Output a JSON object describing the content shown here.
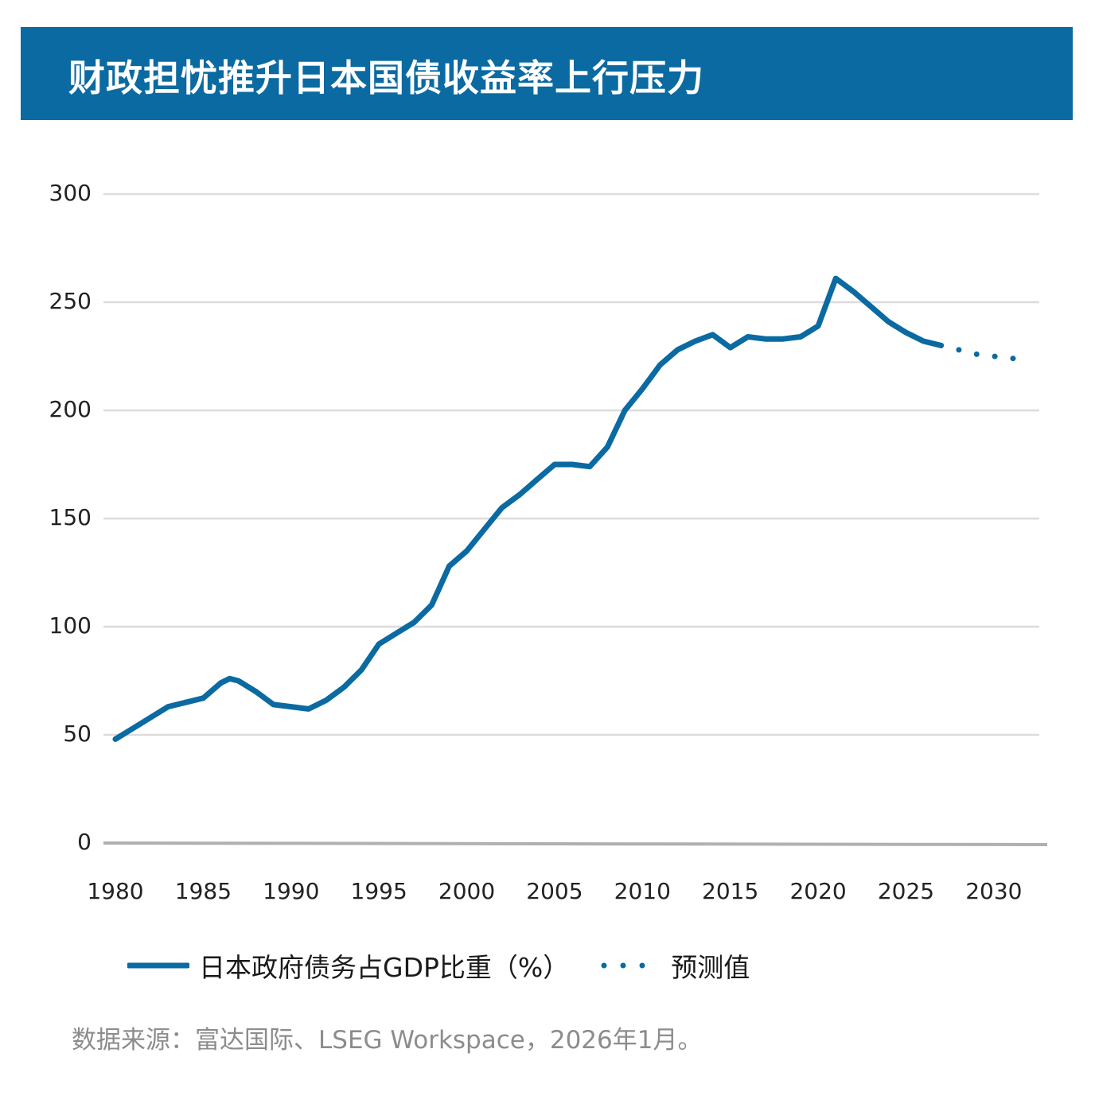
{
  "header": {
    "title": "财政担忧推升日本国债收益率上行压力"
  },
  "colors": {
    "accent": "#0a6aa1",
    "grid": "#dcdcdc",
    "axis": "#b0b0b0"
  },
  "chart_data": {
    "type": "line",
    "title": "财政担忧推升日本国债收益率上行压力",
    "xlabel": "",
    "ylabel": "",
    "xlim": [
      1980,
      2032
    ],
    "ylim": [
      0,
      300
    ],
    "x_ticks": [
      "1980",
      "1985",
      "1990",
      "1995",
      "2000",
      "2005",
      "2010",
      "2015",
      "2020",
      "2025",
      "2030"
    ],
    "y_ticks": [
      "0",
      "50",
      "100",
      "150",
      "200",
      "250",
      "300"
    ],
    "grid": true,
    "legend_position": "bottom",
    "series": [
      {
        "name": "日本政府债务占GDP比重（%）",
        "style": "solid",
        "x": [
          1980,
          1981,
          1982,
          1983,
          1984,
          1985,
          1986,
          1986.5,
          1987,
          1988,
          1989,
          1990,
          1991,
          1992,
          1993,
          1994,
          1995,
          1996,
          1997,
          1998,
          1999,
          2000,
          2001,
          2002,
          2003,
          2004,
          2005,
          2006,
          2007,
          2008,
          2009,
          2010,
          2011,
          2012,
          2013,
          2014,
          2015,
          2016,
          2017,
          2018,
          2019,
          2020,
          2021,
          2022,
          2023,
          2024,
          2025,
          2026,
          2027
        ],
        "values": [
          48,
          53,
          58,
          63,
          65,
          67,
          74,
          76,
          75,
          70,
          64,
          63,
          62,
          66,
          72,
          80,
          92,
          97,
          102,
          110,
          128,
          135,
          145,
          155,
          161,
          168,
          175,
          175,
          174,
          183,
          200,
          210,
          221,
          228,
          232,
          235,
          229,
          234,
          233,
          233,
          234,
          239,
          261,
          255,
          248,
          241,
          236,
          232,
          230
        ]
      },
      {
        "name": "预测值",
        "style": "dotted",
        "x": [
          2027,
          2028,
          2029,
          2030,
          2031,
          2032
        ],
        "values": [
          230,
          228,
          226,
          225,
          224,
          224
        ]
      }
    ]
  },
  "legend": {
    "items": [
      {
        "label": "日本政府债务占GDP比重（%）"
      },
      {
        "label": "预测值"
      }
    ]
  },
  "footer": {
    "source": "数据来源：富达国际、LSEG Workspace，2026年1月。"
  }
}
